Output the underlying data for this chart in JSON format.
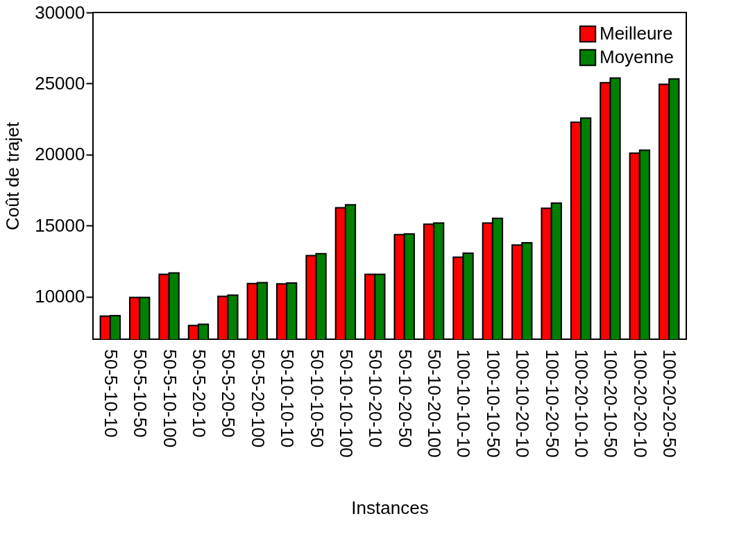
{
  "chart_data": {
    "type": "bar",
    "xlabel": "Instances",
    "ylabel": "Coût de trajet",
    "categories": [
      "50-5-10-10",
      "50-5-10-50",
      "50-5-10-100",
      "50-5-20-10",
      "50-5-20-50",
      "50-5-20-100",
      "50-10-10-10",
      "50-10-10-50",
      "50-10-10-100",
      "50-10-20-10",
      "50-10-20-50",
      "50-10-20-100",
      "100-10-10-10",
      "100-10-10-50",
      "100-10-20-10",
      "100-10-20-50",
      "100-20-10-10",
      "100-20-10-50",
      "100-20-20-10",
      "100-20-20-50"
    ],
    "series": [
      {
        "name": "Meilleure",
        "color": "#ff0000",
        "values": [
          8620,
          9940,
          11570,
          7970,
          10020,
          10920,
          10890,
          12890,
          16250,
          11570,
          14360,
          15100,
          12770,
          15180,
          13630,
          16220,
          22270,
          25050,
          20100,
          24940
        ]
      },
      {
        "name": "Moyenne",
        "color": "#008000",
        "values": [
          8660,
          9940,
          11660,
          8050,
          10100,
          10980,
          10950,
          13020,
          16460,
          11570,
          14410,
          15180,
          13050,
          15510,
          13790,
          16580,
          22560,
          25380,
          20310,
          25320
        ]
      }
    ],
    "ylim": [
      7000,
      30000
    ],
    "yticks": [
      10000,
      15000,
      20000,
      25000,
      30000
    ],
    "grid": false,
    "legend": "top right"
  }
}
